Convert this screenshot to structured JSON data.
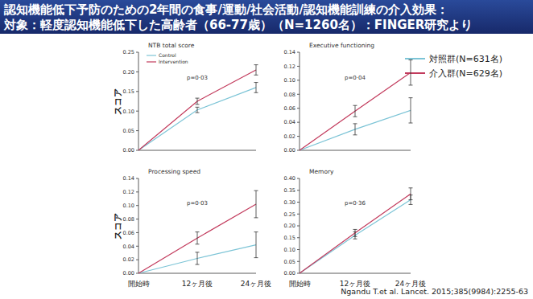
{
  "slide": {
    "title": [
      "認知機能低下予防のための2年間の食事/運動/社会活動/認知機能訓練の介入効果：",
      "対象：軽度認知機能低下した高齢者（66-77歳）（N=1260名）：FINGER研究より"
    ],
    "legend_items": [
      {
        "label": "対照群(N=631名)",
        "color": "#7cc4d6"
      },
      {
        "label": "介入群(N=629名)",
        "color": "#c23a5c"
      }
    ],
    "citation": "Ngandu T.et al. Lancet. 2015;385(9984):2255-63"
  },
  "chart_data": [
    {
      "type": "line",
      "title": "NTB total score",
      "y_label": "スコア",
      "annotation": "p=0·03",
      "categories": [
        null,
        null,
        null
      ],
      "tick_labels": "y",
      "legend": "upper left",
      "ylim": [
        0,
        0.25
      ],
      "yticks": [
        {
          "value": 0,
          "label": "0.00"
        },
        0.05,
        {
          "value": 0.1,
          "label": "0.10"
        },
        0.15,
        {
          "value": 0.2,
          "label": "0.20"
        },
        0.25
      ],
      "series": [
        {
          "name": "Control",
          "color": "#7cc4d6",
          "values": [
            0,
            0.103,
            0.16
          ],
          "errors": [
            null,
            0.007,
            0.013
          ]
        },
        {
          "name": "Intervention",
          "color": "#c23a5c",
          "values": [
            0,
            0.125,
            0.205
          ],
          "errors": [
            null,
            0.008,
            0.013
          ]
        }
      ]
    },
    {
      "type": "line",
      "title": "Executive functioning",
      "annotation": "p=0·04",
      "categories": [
        null,
        null,
        null
      ],
      "tick_labels": "y",
      "ylim": [
        0,
        0.14
      ],
      "yticks": [
        {
          "value": 0,
          "label": "0.00"
        },
        0.02,
        0.04,
        0.06,
        0.08,
        {
          "value": 0.1,
          "label": "0.10"
        },
        0.12,
        0.14
      ],
      "series": [
        {
          "color": "#7cc4d6",
          "values": [
            0,
            0.03,
            0.057
          ],
          "errors": [
            null,
            0.008,
            0.018
          ]
        },
        {
          "color": "#c23a5c",
          "values": [
            0,
            0.056,
            0.111
          ],
          "errors": [
            null,
            0.008,
            0.018
          ]
        }
      ]
    },
    {
      "type": "line",
      "title": "Processing speed",
      "y_label": "スコア",
      "annotation": "p=0·03",
      "categories": [
        "開始時",
        "12ヶ月後",
        "24ヶ月後"
      ],
      "ylim": [
        0,
        0.14
      ],
      "yticks": [
        {
          "value": 0,
          "label": "0.00"
        },
        0.02,
        0.04,
        0.06,
        0.08,
        {
          "value": 0.1,
          "label": "0.10"
        },
        0.12,
        0.14
      ],
      "series": [
        {
          "color": "#7cc4d6",
          "values": [
            0,
            0.022,
            0.042
          ],
          "errors": [
            null,
            0.009,
            0.019
          ]
        },
        {
          "color": "#c23a5c",
          "values": [
            0,
            0.052,
            0.102
          ],
          "errors": [
            null,
            0.009,
            0.02
          ]
        }
      ]
    },
    {
      "type": "line",
      "title": "Memory",
      "annotation": "p=0·36",
      "categories": [
        "開始時",
        "12ヶ月後",
        "24ヶ月後"
      ],
      "ylim": [
        0,
        0.4
      ],
      "yticks": [
        {
          "value": 0,
          "label": "0.00"
        },
        0.05,
        {
          "value": 0.1,
          "label": "0.10"
        },
        0.15,
        {
          "value": 0.2,
          "label": "0.20"
        },
        0.25,
        {
          "value": 0.3,
          "label": "0.30"
        },
        0.35,
        {
          "value": 0.4,
          "label": "0.40"
        }
      ],
      "series": [
        {
          "color": "#7cc4d6",
          "values": [
            0,
            0.16,
            0.31
          ],
          "errors": [
            null,
            0.015,
            0.02
          ]
        },
        {
          "color": "#c23a5c",
          "values": [
            0,
            0.17,
            0.335
          ],
          "errors": [
            null,
            0.015,
            0.025
          ]
        }
      ]
    }
  ]
}
